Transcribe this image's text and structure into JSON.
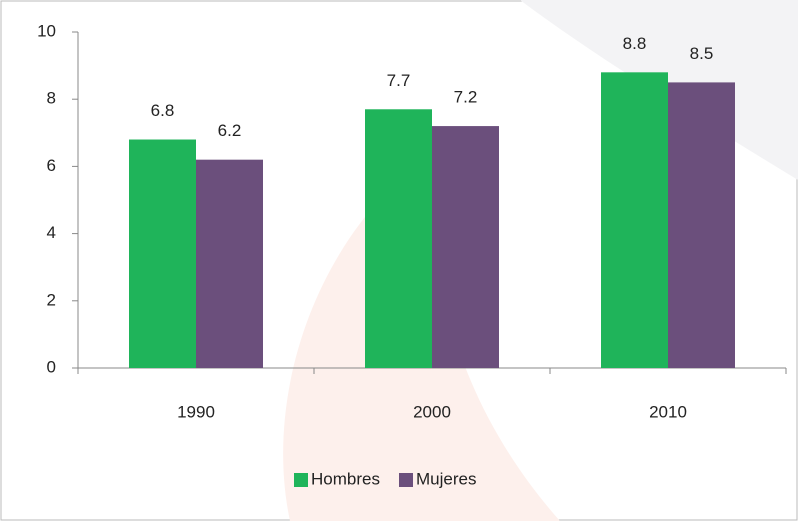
{
  "chart_data": {
    "type": "bar",
    "categories": [
      "1990",
      "2000",
      "2010"
    ],
    "series": [
      {
        "name": "Hombres",
        "color": "#1fb45a",
        "values": [
          6.8,
          7.7,
          8.8
        ]
      },
      {
        "name": "Mujeres",
        "color": "#6b4f7c",
        "values": [
          6.2,
          7.2,
          8.5
        ]
      }
    ],
    "ylim": [
      0,
      10
    ],
    "yticks": [
      0,
      2,
      4,
      6,
      8,
      10
    ],
    "grid": false,
    "legend": "bottom"
  }
}
